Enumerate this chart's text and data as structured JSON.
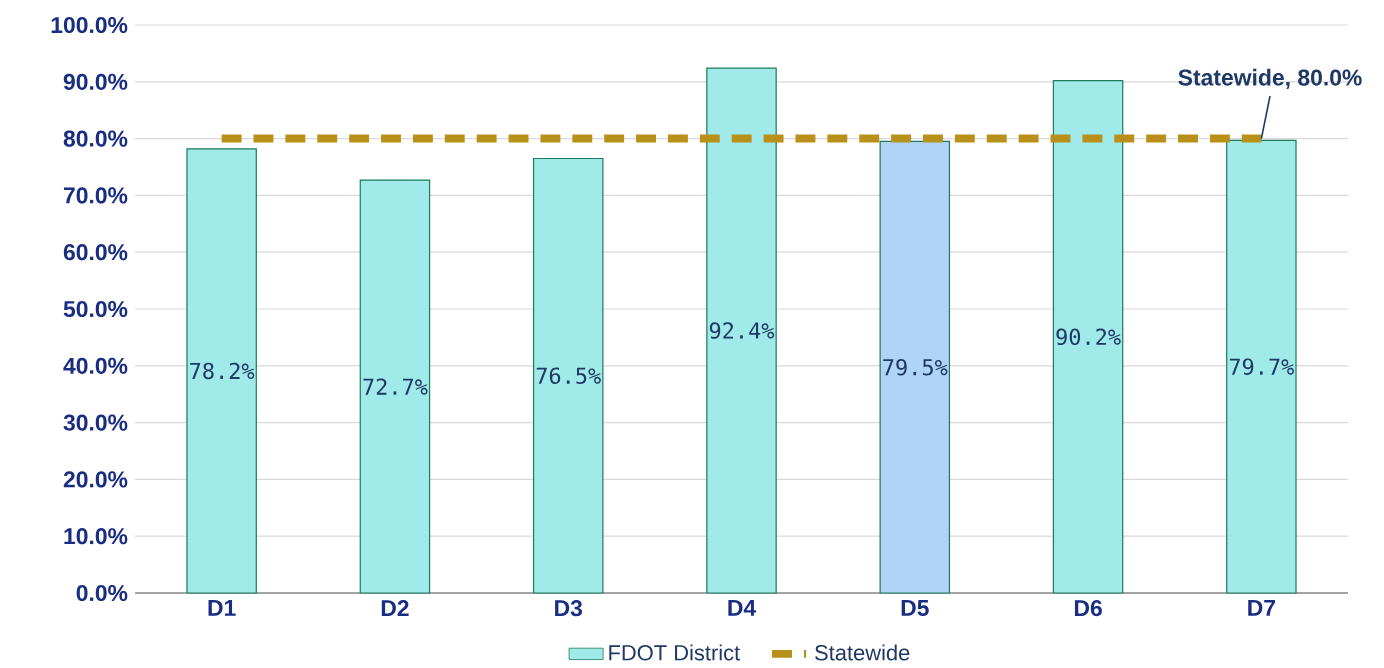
{
  "chart_data": {
    "type": "bar",
    "categories": [
      "D1",
      "D2",
      "D3",
      "D4",
      "D5",
      "D6",
      "D7"
    ],
    "series": [
      {
        "name": "FDOT District",
        "color": "#a0eaea",
        "colors": [
          "#a0eaea",
          "#a0eaea",
          "#a0eaea",
          "#a0eaea",
          "#b0d4f8",
          "#a0eaea",
          "#a0eaea"
        ],
        "values": [
          78.2,
          72.7,
          76.5,
          92.4,
          79.5,
          90.2,
          79.7
        ],
        "value_labels": [
          "78.2%",
          "72.7%",
          "76.5%",
          "92.4%",
          "79.5%",
          "90.2%",
          "79.7%"
        ]
      },
      {
        "name": "Statewide",
        "type": "line",
        "color": "#b8901a",
        "line_style": "dashed",
        "values": [
          80,
          80,
          80,
          80,
          80,
          80,
          80
        ]
      }
    ],
    "ylim": [
      0,
      100
    ],
    "yticks": [
      {
        "value": 0,
        "label": "0.0%"
      },
      {
        "value": 10,
        "label": "10.0%"
      },
      {
        "value": 20,
        "label": "20.0%"
      },
      {
        "value": 30,
        "label": "30.0%"
      },
      {
        "value": 40,
        "label": "40.0%"
      },
      {
        "value": 50,
        "label": "50.0%"
      },
      {
        "value": 60,
        "label": "60.0%"
      },
      {
        "value": 70,
        "label": "70.0%"
      },
      {
        "value": 80,
        "label": "80.0%"
      },
      {
        "value": 90,
        "label": "90.0%"
      },
      {
        "value": 100,
        "label": "100.0%"
      }
    ],
    "grid": "y",
    "legend": "bottom",
    "marker": "none",
    "annotations": [
      {
        "text": "Statewide, 80.0%",
        "x": "D7",
        "y": 80
      }
    ]
  }
}
